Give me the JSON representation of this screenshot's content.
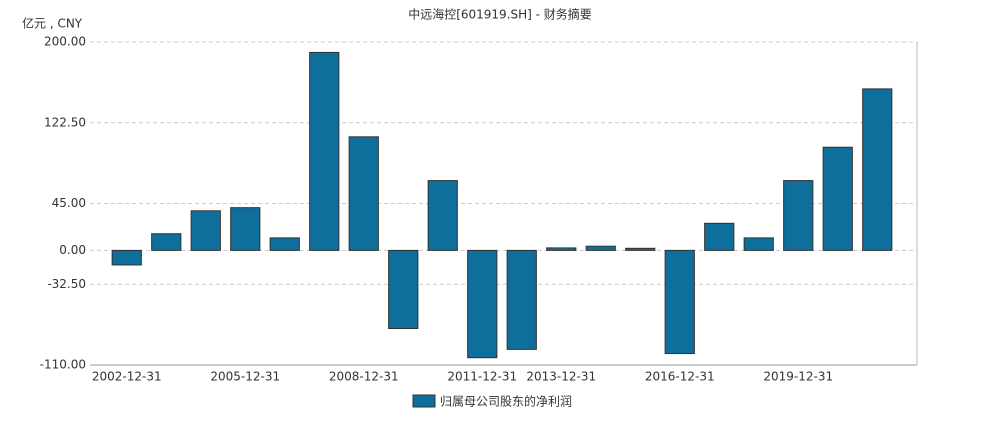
{
  "chart_data": {
    "type": "bar",
    "title": "中远海控[601919.SH] - 财务摘要",
    "y_label": "亿元 , CNY",
    "categories": [
      "2002-12-31",
      null,
      null,
      "2005-12-31",
      null,
      null,
      "2008-12-31",
      null,
      null,
      "2011-12-31",
      null,
      "2013-12-31",
      null,
      null,
      "2016-12-31",
      null,
      null,
      "2019-12-31",
      null,
      null
    ],
    "series": [
      {
        "name": "归属母公司股东的净利润",
        "color": "#0f6f9c",
        "values": [
          -14,
          16,
          38,
          41,
          12,
          190,
          109,
          -75,
          67,
          -103,
          -95,
          2.4,
          4,
          2,
          -99,
          26,
          12,
          67,
          99,
          155
        ]
      }
    ],
    "ylim": [
      -110,
      200
    ],
    "yticks": [
      {
        "value": -110,
        "label": "-110.00"
      },
      {
        "value": -32.5,
        "label": "-32.50"
      },
      {
        "value": 0,
        "label": "0.00"
      },
      {
        "value": 45,
        "label": "45.00"
      },
      {
        "value": 122.5,
        "label": "122.50"
      },
      {
        "value": 200,
        "label": "200.00"
      }
    ],
    "grid": true
  }
}
